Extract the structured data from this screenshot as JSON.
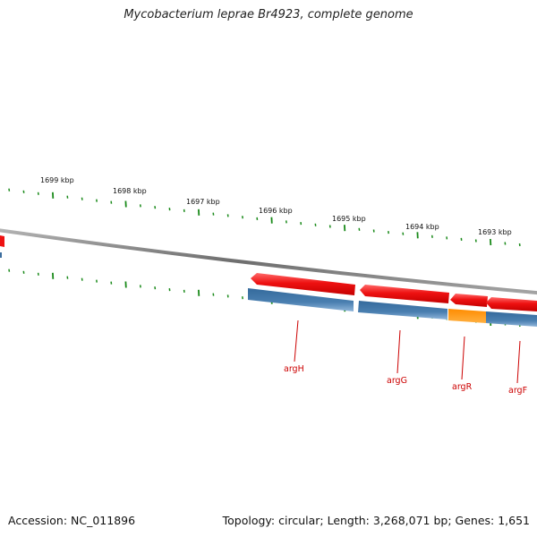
{
  "title": "Mycobacterium leprae Br4923, complete genome",
  "footer": {
    "accession": "Accession: NC_011896",
    "topology": "Topology: circular; Length: 3,268,071 bp; Genes: 1,651"
  },
  "scale_labels": [
    "1699 kbp",
    "1698 kbp",
    "1697 kbp",
    "1696 kbp",
    "1695 kbp",
    "1694 kbp",
    "1693 kbp"
  ],
  "genes": [
    {
      "name": "argH"
    },
    {
      "name": "argG"
    },
    {
      "name": "argR"
    },
    {
      "name": "argF"
    }
  ],
  "colors": {
    "backbone": "#7a7a7a",
    "cds": "#ee1111",
    "cds_light": "#ff5a5a",
    "gene_track": "#3d6e9e",
    "gene_track_light": "#7fa8d0",
    "regulator": "#ff9a10",
    "ticks": "#1a8a1a",
    "gene_label": "#cc0000"
  }
}
